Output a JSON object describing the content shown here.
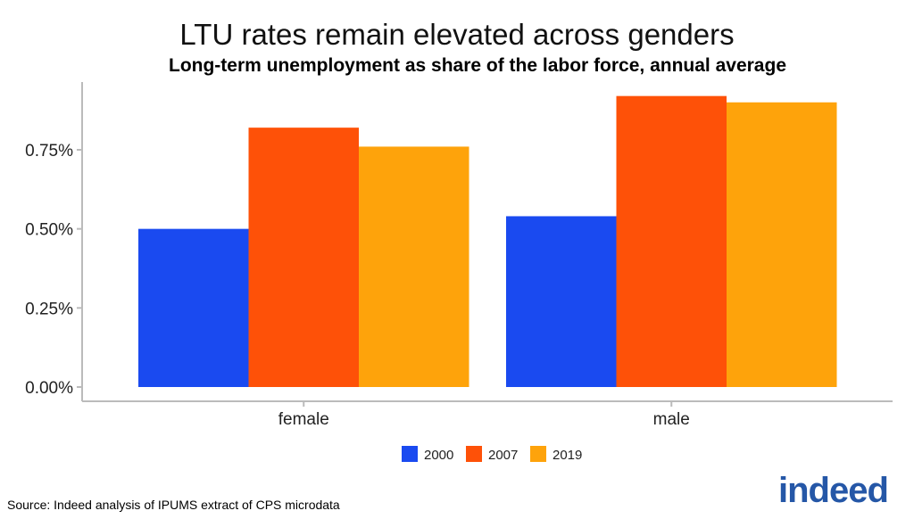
{
  "chart_data": {
    "type": "bar",
    "title": "LTU rates remain elevated across genders",
    "subtitle": "Long-term unemployment as share of the labor force, annual average",
    "categories": [
      "female",
      "male"
    ],
    "series": [
      {
        "name": "2000",
        "color": "#1a4af0",
        "values": [
          0.5,
          0.54
        ]
      },
      {
        "name": "2007",
        "color": "#fe5108",
        "values": [
          0.82,
          0.92
        ]
      },
      {
        "name": "2019",
        "color": "#fea30b",
        "values": [
          0.76,
          0.9
        ]
      }
    ],
    "yticks": [
      "0.00%",
      "0.25%",
      "0.50%",
      "0.75%"
    ],
    "ylim": [
      0,
      0.95
    ],
    "xlabel": "",
    "ylabel": "",
    "grid": false,
    "legend": "bottom"
  },
  "source": "Source: Indeed analysis of IPUMS extract of CPS microdata",
  "logo": "indeed"
}
